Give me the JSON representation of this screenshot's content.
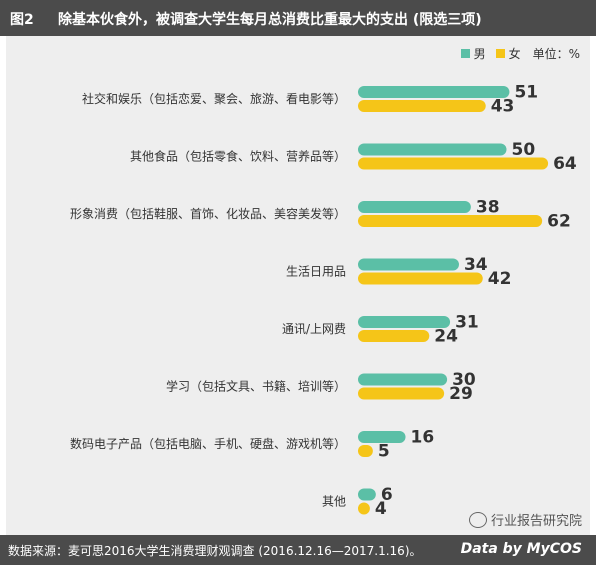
{
  "header": {
    "fig_label": "图2",
    "title": "除基本伙食外，被调查大学生每月总消费比重最大的支出 (限选三项)"
  },
  "legend": {
    "male": "男",
    "female": "女",
    "unit": "单位：%"
  },
  "colors": {
    "male": "#5bbfa6",
    "female": "#f5c518"
  },
  "chart_data": {
    "type": "bar",
    "orientation": "horizontal",
    "title": "除基本伙食外，被调查大学生每月总消费比重最大的支出 (限选三项)",
    "categories": [
      "社交和娱乐（包括恋爱、聚会、旅游、看电影等）",
      "其他食品（包括零食、饮料、营养品等）",
      "形象消费（包括鞋服、首饰、化妆品、美容美发等）",
      "生活日用品",
      "通讯/上网费",
      "学习（包括文具、书籍、培训等）",
      "数码电子产品（包括电脑、手机、硬盘、游戏机等）",
      "其他"
    ],
    "series": [
      {
        "name": "男",
        "values": [
          51,
          50,
          38,
          34,
          31,
          30,
          16,
          6
        ]
      },
      {
        "name": "女",
        "values": [
          43,
          64,
          62,
          42,
          24,
          29,
          5,
          4
        ]
      }
    ],
    "unit": "%",
    "legend_position": "top-right"
  },
  "footer": {
    "source": "数据来源：麦可思2016大学生消费理财观调查 (2016.12.16—2017.1.16)。",
    "brand": "Data by MyCOS"
  },
  "watermark": {
    "text": "行业报告研究院"
  }
}
